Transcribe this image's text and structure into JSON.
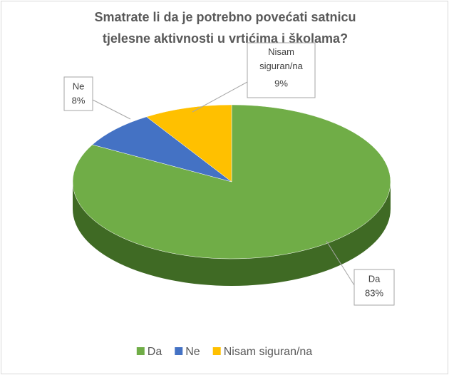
{
  "chart_data": {
    "type": "pie3d",
    "title": [
      "Smatrate li da je potrebno povećati satnicu",
      "tjelesne aktivnosti u vrtićima i školama?"
    ],
    "categories": [
      "Da",
      "Ne",
      "Nisam siguran/na"
    ],
    "values": [
      83,
      8,
      9
    ],
    "value_labels": [
      "83%",
      "8%",
      "9%"
    ],
    "colors": [
      "#70ad47",
      "#4472c4",
      "#ffc000"
    ],
    "side_colors": [
      "#3f6a24",
      "#2a4a85",
      "#b38600"
    ],
    "legend": "bottom"
  }
}
